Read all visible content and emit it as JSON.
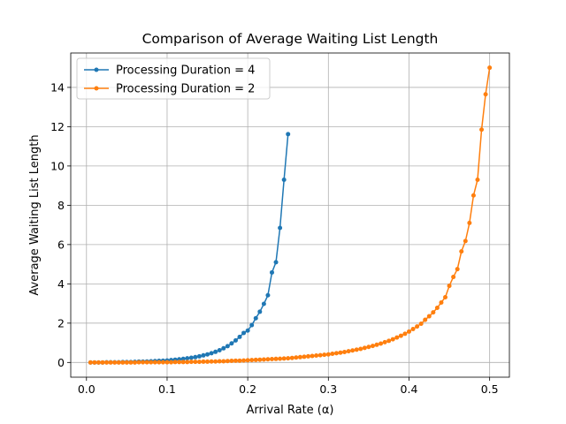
{
  "chart_data": {
    "type": "line",
    "title": "Comparison of Average Waiting List Length",
    "xlabel": "Arrival Rate (α)",
    "ylabel": "Average Waiting List Length",
    "xlim": [
      -0.0195,
      0.5245
    ],
    "ylim": [
      -0.75,
      15.75
    ],
    "xticks": [
      0.0,
      0.1,
      0.2,
      0.3,
      0.4,
      0.5
    ],
    "xtick_labels": [
      "0.0",
      "0.1",
      "0.2",
      "0.3",
      "0.4",
      "0.5"
    ],
    "yticks": [
      0,
      2,
      4,
      6,
      8,
      10,
      12,
      14
    ],
    "ytick_labels": [
      "0",
      "2",
      "4",
      "6",
      "8",
      "10",
      "12",
      "14"
    ],
    "grid": true,
    "legend_position": "top-left",
    "series": [
      {
        "name": "Processing Duration = 4",
        "color": "#1f77b4",
        "marker": "circle",
        "x": [
          0.005,
          0.01,
          0.015,
          0.02,
          0.025,
          0.03,
          0.035,
          0.04,
          0.045,
          0.05,
          0.055,
          0.06,
          0.065,
          0.07,
          0.075,
          0.08,
          0.085,
          0.09,
          0.095,
          0.1,
          0.105,
          0.11,
          0.115,
          0.12,
          0.125,
          0.13,
          0.135,
          0.14,
          0.145,
          0.15,
          0.155,
          0.16,
          0.165,
          0.17,
          0.175,
          0.18,
          0.185,
          0.19,
          0.195,
          0.2,
          0.205,
          0.21,
          0.215,
          0.22,
          0.225,
          0.23,
          0.235,
          0.24,
          0.245,
          0.25
        ],
        "values": [
          0.0,
          0.0,
          0.0,
          0.0,
          0.01,
          0.01,
          0.01,
          0.01,
          0.02,
          0.02,
          0.02,
          0.03,
          0.04,
          0.04,
          0.05,
          0.06,
          0.07,
          0.08,
          0.09,
          0.1,
          0.12,
          0.14,
          0.16,
          0.18,
          0.21,
          0.24,
          0.27,
          0.31,
          0.36,
          0.41,
          0.47,
          0.54,
          0.62,
          0.72,
          0.83,
          0.97,
          1.12,
          1.3,
          1.5,
          1.62,
          1.9,
          2.25,
          2.58,
          2.98,
          3.42,
          4.58,
          5.1,
          6.85,
          9.3,
          11.62
        ]
      },
      {
        "name": "Processing Duration = 2",
        "color": "#ff7f0e",
        "marker": "circle",
        "x": [
          0.005,
          0.01,
          0.015,
          0.02,
          0.025,
          0.03,
          0.035,
          0.04,
          0.045,
          0.05,
          0.055,
          0.06,
          0.065,
          0.07,
          0.075,
          0.08,
          0.085,
          0.09,
          0.095,
          0.1,
          0.105,
          0.11,
          0.115,
          0.12,
          0.125,
          0.13,
          0.135,
          0.14,
          0.145,
          0.15,
          0.155,
          0.16,
          0.165,
          0.17,
          0.175,
          0.18,
          0.185,
          0.19,
          0.195,
          0.2,
          0.205,
          0.21,
          0.215,
          0.22,
          0.225,
          0.23,
          0.235,
          0.24,
          0.245,
          0.25,
          0.255,
          0.26,
          0.265,
          0.27,
          0.275,
          0.28,
          0.285,
          0.29,
          0.295,
          0.3,
          0.305,
          0.31,
          0.315,
          0.32,
          0.325,
          0.33,
          0.335,
          0.34,
          0.345,
          0.35,
          0.355,
          0.36,
          0.365,
          0.37,
          0.375,
          0.38,
          0.385,
          0.39,
          0.395,
          0.4,
          0.405,
          0.41,
          0.415,
          0.42,
          0.425,
          0.43,
          0.435,
          0.44,
          0.445,
          0.45,
          0.455,
          0.46,
          0.465,
          0.47,
          0.475,
          0.48,
          0.485,
          0.49,
          0.495,
          0.5
        ],
        "values": [
          0.0,
          0.0,
          0.0,
          0.0,
          0.0,
          0.0,
          0.0,
          0.0,
          0.0,
          0.0,
          0.0,
          0.0,
          0.01,
          0.01,
          0.01,
          0.01,
          0.01,
          0.01,
          0.01,
          0.01,
          0.01,
          0.02,
          0.02,
          0.02,
          0.02,
          0.03,
          0.03,
          0.03,
          0.04,
          0.04,
          0.05,
          0.05,
          0.06,
          0.06,
          0.07,
          0.08,
          0.09,
          0.09,
          0.1,
          0.11,
          0.12,
          0.13,
          0.14,
          0.15,
          0.16,
          0.17,
          0.18,
          0.19,
          0.2,
          0.21,
          0.23,
          0.25,
          0.27,
          0.29,
          0.31,
          0.33,
          0.35,
          0.37,
          0.39,
          0.41,
          0.44,
          0.47,
          0.5,
          0.53,
          0.57,
          0.61,
          0.65,
          0.69,
          0.74,
          0.79,
          0.84,
          0.9,
          0.96,
          1.03,
          1.1,
          1.18,
          1.27,
          1.36,
          1.46,
          1.57,
          1.7,
          1.83,
          1.97,
          2.17,
          2.35,
          2.55,
          2.78,
          3.05,
          3.32,
          3.9,
          4.35,
          4.75,
          5.65,
          6.18,
          7.1,
          8.5,
          9.3,
          11.85,
          13.65,
          15.0
        ]
      }
    ]
  }
}
